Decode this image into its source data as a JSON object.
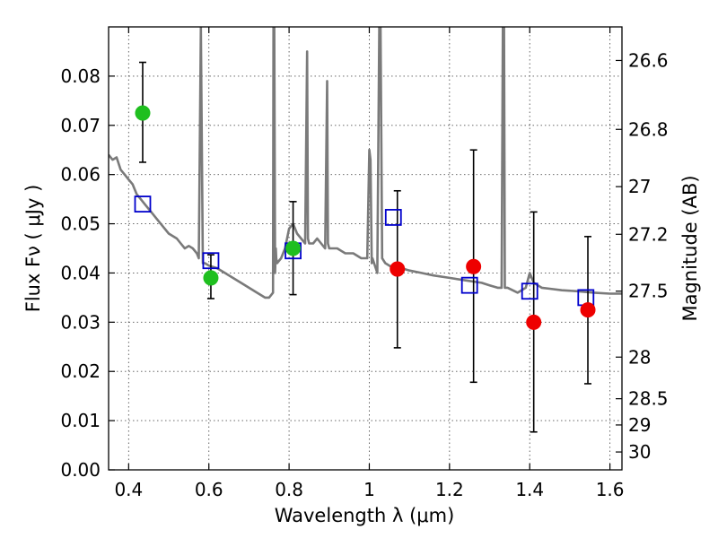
{
  "chart_data": {
    "type": "scatter",
    "xlabel": "Wavelength  λ (μm)",
    "ylabel": "Flux  Fν  ( μJy )",
    "y2label": "Magnitude (AB)",
    "xlim": [
      0.35,
      1.63
    ],
    "ylim": [
      0.0,
      0.09
    ],
    "grid": true,
    "x_ticks": [
      0.4,
      0.6,
      0.8,
      1.0,
      1.2,
      1.4,
      1.6
    ],
    "x_tick_labels": [
      "0.4",
      "0.6",
      "0.8",
      "1",
      "1.2",
      "1.4",
      "1.6"
    ],
    "y_ticks": [
      0.0,
      0.01,
      0.02,
      0.03,
      0.04,
      0.05,
      0.06,
      0.07,
      0.08
    ],
    "y_tick_labels": [
      "0.00",
      "0.01",
      "0.02",
      "0.03",
      "0.04",
      "0.05",
      "0.06",
      "0.07",
      "0.08"
    ],
    "y2_ticks": [
      26.6,
      26.8,
      27,
      27.2,
      27.5,
      28,
      28.5,
      29,
      30
    ],
    "y2_tick_labels": [
      "26.6",
      "26.8",
      "27",
      "27.2",
      "27.5",
      "28",
      "28.5",
      "29",
      "30"
    ],
    "colors": {
      "model": "#7a7a7a",
      "optical": "#1fbf1f",
      "nir": "#ee0000",
      "model_photometry": "#0000cc",
      "errorbar": "#000000"
    },
    "series": [
      {
        "kind": "model-spectrum",
        "color": "#7a7a7a",
        "x": [
          0.35,
          0.36,
          0.37,
          0.38,
          0.39,
          0.4,
          0.41,
          0.42,
          0.43,
          0.44,
          0.45,
          0.46,
          0.47,
          0.48,
          0.5,
          0.52,
          0.53,
          0.54,
          0.55,
          0.56,
          0.57,
          0.575,
          0.58,
          0.585,
          0.59,
          0.6,
          0.62,
          0.64,
          0.66,
          0.68,
          0.7,
          0.72,
          0.74,
          0.75,
          0.76,
          0.761,
          0.763,
          0.765,
          0.767,
          0.768,
          0.77,
          0.78,
          0.79,
          0.8,
          0.81,
          0.82,
          0.83,
          0.84,
          0.845,
          0.847,
          0.85,
          0.86,
          0.87,
          0.88,
          0.89,
          0.895,
          0.897,
          0.9,
          0.92,
          0.94,
          0.96,
          0.98,
          0.995,
          1.0,
          1.003,
          1.006,
          1.008,
          1.02,
          1.025,
          1.028,
          1.032,
          1.04,
          1.06,
          1.08,
          1.1,
          1.13,
          1.16,
          1.2,
          1.24,
          1.28,
          1.3,
          1.32,
          1.33,
          1.333,
          1.336,
          1.338,
          1.345,
          1.37,
          1.39,
          1.4,
          1.41,
          1.42,
          1.43,
          1.45,
          1.48,
          1.52,
          1.56,
          1.6,
          1.63
        ],
        "y": [
          0.064,
          0.063,
          0.0635,
          0.061,
          0.06,
          0.059,
          0.058,
          0.056,
          0.055,
          0.054,
          0.053,
          0.052,
          0.051,
          0.05,
          0.048,
          0.047,
          0.046,
          0.045,
          0.0455,
          0.045,
          0.044,
          0.043,
          0.09,
          0.042,
          0.042,
          0.0415,
          0.041,
          0.04,
          0.039,
          0.038,
          0.037,
          0.036,
          0.035,
          0.035,
          0.036,
          0.09,
          0.09,
          0.04,
          0.045,
          0.043,
          0.042,
          0.043,
          0.045,
          0.049,
          0.05,
          0.048,
          0.047,
          0.046,
          0.085,
          0.047,
          0.046,
          0.046,
          0.047,
          0.046,
          0.045,
          0.079,
          0.046,
          0.045,
          0.045,
          0.044,
          0.044,
          0.043,
          0.043,
          0.065,
          0.063,
          0.042,
          0.043,
          0.04,
          0.09,
          0.09,
          0.043,
          0.042,
          0.041,
          0.041,
          0.0405,
          0.04,
          0.0395,
          0.039,
          0.0385,
          0.038,
          0.0375,
          0.037,
          0.037,
          0.09,
          0.09,
          0.037,
          0.037,
          0.036,
          0.037,
          0.04,
          0.038,
          0.0375,
          0.037,
          0.0368,
          0.0365,
          0.0363,
          0.036,
          0.0358,
          0.0358
        ]
      },
      {
        "kind": "model-photometry",
        "marker": "square-open",
        "color": "#0000cc",
        "x": [
          0.435,
          0.605,
          0.81,
          1.06,
          1.25,
          1.4,
          1.54
        ],
        "y": [
          0.054,
          0.0425,
          0.0445,
          0.0513,
          0.0375,
          0.0363,
          0.035
        ]
      },
      {
        "kind": "observed-optical",
        "marker": "circle",
        "color": "#1fbf1f",
        "x": [
          0.435,
          0.605,
          0.81
        ],
        "y": [
          0.0725,
          0.039,
          0.045
        ],
        "err_low": [
          0.0625,
          0.0348,
          0.0356
        ],
        "err_high": [
          0.0828,
          0.0437,
          0.0545
        ]
      },
      {
        "kind": "observed-nir",
        "marker": "circle",
        "color": "#ee0000",
        "x": [
          1.07,
          1.26,
          1.41,
          1.545
        ],
        "y": [
          0.0408,
          0.0413,
          0.03,
          0.0325
        ],
        "err_low": [
          0.0248,
          0.0178,
          0.0077,
          0.0175
        ],
        "err_high": [
          0.0567,
          0.065,
          0.0524,
          0.0474
        ]
      }
    ]
  }
}
